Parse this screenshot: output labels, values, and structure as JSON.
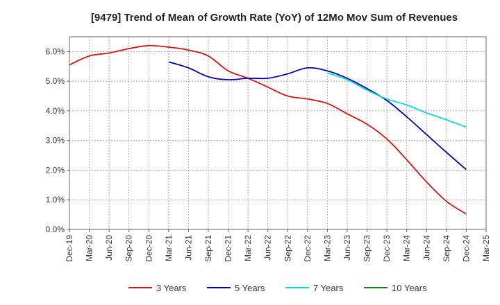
{
  "chart_data": {
    "type": "line",
    "title": "[9479]  Trend of Mean of Growth Rate (YoY) of 12Mo Mov Sum of Revenues",
    "xlabel": "",
    "ylabel": "",
    "categories": [
      "Dec-19",
      "Mar-20",
      "Jun-20",
      "Sep-20",
      "Dec-20",
      "Mar-21",
      "Jun-21",
      "Sep-21",
      "Dec-21",
      "Mar-22",
      "Jun-22",
      "Sep-22",
      "Dec-22",
      "Mar-23",
      "Jun-23",
      "Sep-23",
      "Dec-23",
      "Mar-24",
      "Jun-24",
      "Sep-24",
      "Dec-24",
      "Mar-25"
    ],
    "y_ticks": [
      "0.0%",
      "1.0%",
      "2.0%",
      "3.0%",
      "4.0%",
      "5.0%",
      "6.0%"
    ],
    "ylim": [
      0,
      6.5
    ],
    "grid": true,
    "legend_position": "bottom",
    "series": [
      {
        "name": "3 Years",
        "color": "#dd1111",
        "values": [
          5.55,
          5.85,
          5.95,
          6.1,
          6.2,
          6.15,
          6.05,
          5.85,
          5.35,
          5.1,
          4.8,
          4.5,
          4.4,
          4.25,
          3.9,
          3.55,
          3.05,
          2.35,
          1.6,
          0.95,
          0.52,
          null
        ]
      },
      {
        "name": "5 Years",
        "color": "#0000bb",
        "values": [
          null,
          null,
          null,
          null,
          null,
          5.65,
          5.45,
          5.15,
          5.05,
          5.1,
          5.1,
          5.25,
          5.45,
          5.35,
          5.1,
          4.75,
          4.35,
          3.8,
          3.2,
          2.6,
          2.02,
          null
        ]
      },
      {
        "name": "7 Years",
        "color": "#00dddd",
        "values": [
          null,
          null,
          null,
          null,
          null,
          null,
          null,
          null,
          null,
          null,
          null,
          null,
          null,
          5.28,
          5.05,
          4.7,
          4.4,
          4.2,
          3.93,
          3.7,
          3.45,
          null
        ]
      },
      {
        "name": "10 Years",
        "color": "#118811",
        "values": [
          null,
          null,
          null,
          null,
          null,
          null,
          null,
          null,
          null,
          null,
          null,
          null,
          null,
          null,
          null,
          null,
          null,
          null,
          null,
          null,
          null,
          null
        ]
      }
    ]
  }
}
